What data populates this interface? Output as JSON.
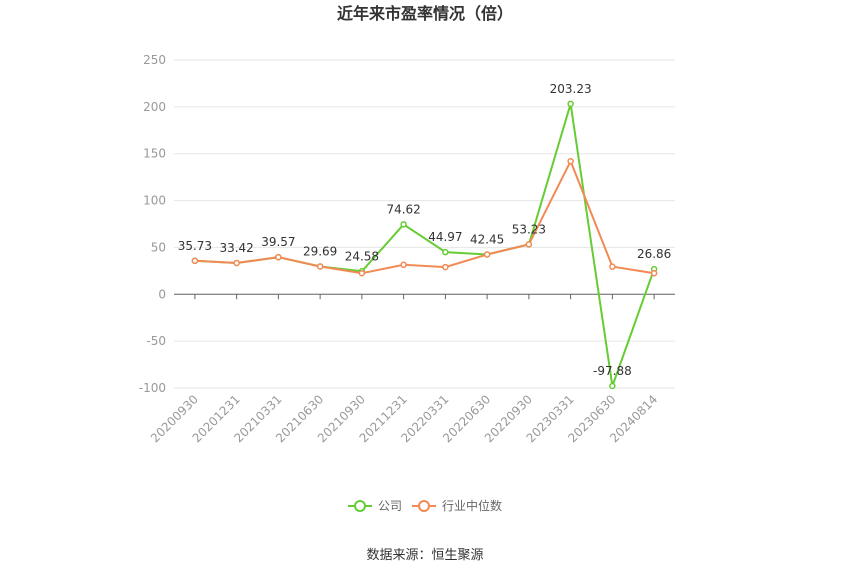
{
  "chart_data": {
    "type": "line",
    "title": "近年来市盈率情况（倍）",
    "categories": [
      "20200930",
      "20201231",
      "20210331",
      "20210630",
      "20210930",
      "20211231",
      "20220331",
      "20220630",
      "20220930",
      "20230331",
      "20230630",
      "20240814"
    ],
    "ylim": [
      -100,
      250
    ],
    "yticks": [
      -100,
      -50,
      0,
      50,
      100,
      150,
      200,
      250
    ],
    "grid": true,
    "legend_position": "bottom",
    "series": [
      {
        "name": "公司",
        "color": "#66cc33",
        "values": [
          35.73,
          33.42,
          39.57,
          29.69,
          24.58,
          74.62,
          44.97,
          42.45,
          53.23,
          203.23,
          -97.88,
          26.86
        ],
        "labels": [
          "35.73",
          "33.42",
          "39.57",
          "29.69",
          "24.58",
          "74.62",
          "44.97",
          "42.45",
          "53.23",
          "203.23",
          "-97.88",
          "26.86"
        ]
      },
      {
        "name": "行业中位数",
        "color": "#f28a55",
        "values": [
          35.73,
          33.42,
          39.57,
          29.69,
          22.5,
          31.5,
          29.0,
          42.45,
          53.23,
          142.0,
          29.5,
          22.5
        ]
      }
    ]
  },
  "source": "数据来源：恒生聚源"
}
